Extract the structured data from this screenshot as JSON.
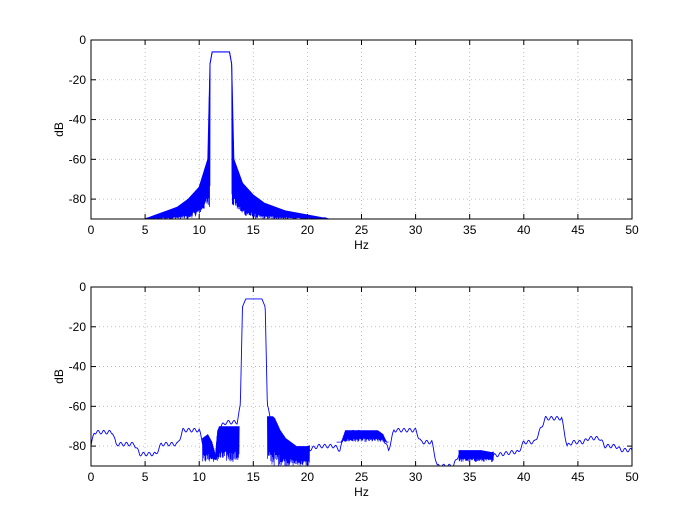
{
  "chart_data": [
    {
      "type": "line",
      "title": "",
      "xlabel": "Hz",
      "ylabel": "dB",
      "xlim": [
        0,
        50
      ],
      "ylim": [
        -90,
        0
      ],
      "xticks": [
        0,
        5,
        10,
        15,
        20,
        25,
        30,
        35,
        40,
        45,
        50
      ],
      "yticks": [
        0,
        -20,
        -40,
        -60,
        -80
      ],
      "grid": true,
      "line_color": "#0000ff",
      "series": [
        {
          "envelope_upper": [
            [
              5,
              -90
            ],
            [
              6,
              -88
            ],
            [
              7,
              -86
            ],
            [
              8,
              -84
            ],
            [
              9,
              -80
            ],
            [
              10,
              -74
            ],
            [
              10.8,
              -60
            ],
            [
              11.0,
              -12
            ],
            [
              11.2,
              -6
            ],
            [
              12.8,
              -6
            ],
            [
              13.0,
              -12
            ],
            [
              13.2,
              -60
            ],
            [
              14,
              -72
            ],
            [
              15,
              -78
            ],
            [
              16,
              -82
            ],
            [
              17,
              -84
            ],
            [
              18,
              -86
            ],
            [
              20,
              -88
            ],
            [
              22,
              -90
            ]
          ],
          "envelope_lower": [
            [
              5,
              -90
            ],
            [
              9,
              -90
            ],
            [
              10,
              -88
            ],
            [
              10.7,
              -84
            ],
            [
              13.3,
              -84
            ],
            [
              14,
              -88
            ],
            [
              15,
              -90
            ],
            [
              22,
              -90
            ]
          ]
        }
      ]
    },
    {
      "type": "line",
      "title": "",
      "xlabel": "Hz",
      "ylabel": "dB",
      "xlim": [
        0,
        50
      ],
      "ylim": [
        -90,
        0
      ],
      "xticks": [
        0,
        5,
        10,
        15,
        20,
        25,
        30,
        35,
        40,
        45,
        50
      ],
      "yticks": [
        0,
        -20,
        -40,
        -60,
        -80
      ],
      "grid": true,
      "line_color": "#0000ff",
      "series": [
        {
          "trace": [
            [
              0,
              -80
            ],
            [
              0.3,
              -73
            ],
            [
              2,
              -73
            ],
            [
              2.3,
              -79
            ],
            [
              4,
              -79
            ],
            [
              4.5,
              -84
            ],
            [
              6,
              -84
            ],
            [
              6.5,
              -79
            ],
            [
              8,
              -79
            ],
            [
              8.5,
              -72
            ],
            [
              10,
              -72
            ],
            [
              10.3,
              -78
            ],
            [
              10.8,
              -76
            ],
            [
              11.2,
              -80
            ],
            [
              11.5,
              -86
            ],
            [
              11.7,
              -74
            ],
            [
              12,
              -70
            ],
            [
              12.5,
              -68
            ],
            [
              13.5,
              -68
            ],
            [
              13.8,
              -60
            ],
            [
              14.0,
              -10
            ],
            [
              14.3,
              -6
            ],
            [
              15.8,
              -6
            ],
            [
              16.1,
              -10
            ],
            [
              16.3,
              -60
            ],
            [
              16.6,
              -66
            ],
            [
              17,
              -68
            ],
            [
              17.5,
              -74
            ],
            [
              18,
              -78
            ],
            [
              18.5,
              -80
            ],
            [
              19,
              -82
            ],
            [
              20,
              -82
            ],
            [
              21,
              -80
            ],
            [
              22,
              -80
            ],
            [
              22.5,
              -80
            ],
            [
              23,
              -82
            ],
            [
              23.5,
              -74
            ],
            [
              24,
              -73
            ],
            [
              25,
              -73
            ],
            [
              26,
              -74
            ],
            [
              26.5,
              -74
            ],
            [
              27,
              -76
            ],
            [
              27.5,
              -82
            ],
            [
              28,
              -72
            ],
            [
              29,
              -72
            ],
            [
              29.5,
              -72
            ],
            [
              30,
              -72
            ],
            [
              30.5,
              -78
            ],
            [
              31.5,
              -78
            ],
            [
              32,
              -90
            ],
            [
              33.5,
              -90
            ],
            [
              34,
              -84
            ],
            [
              36,
              -84
            ],
            [
              37,
              -85
            ],
            [
              38,
              -84
            ],
            [
              39,
              -83
            ],
            [
              39.5,
              -83
            ],
            [
              40,
              -78
            ],
            [
              41,
              -78
            ],
            [
              41.5,
              -72
            ],
            [
              42,
              -66
            ],
            [
              43.5,
              -66
            ],
            [
              44,
              -80
            ],
            [
              44.5,
              -78
            ],
            [
              45.5,
              -78
            ],
            [
              46,
              -76
            ],
            [
              47,
              -76
            ],
            [
              47.5,
              -80
            ],
            [
              48.5,
              -80
            ],
            [
              49,
              -82
            ],
            [
              50,
              -82
            ]
          ],
          "fill_ranges": [
            [
              10.3,
              13.7,
              -70,
              -88
            ],
            [
              16.3,
              20.2,
              -65,
              -90
            ],
            [
              22.7,
              27.5,
              -72,
              -78
            ],
            [
              34,
              37.2,
              -82,
              -88
            ]
          ]
        }
      ]
    }
  ]
}
